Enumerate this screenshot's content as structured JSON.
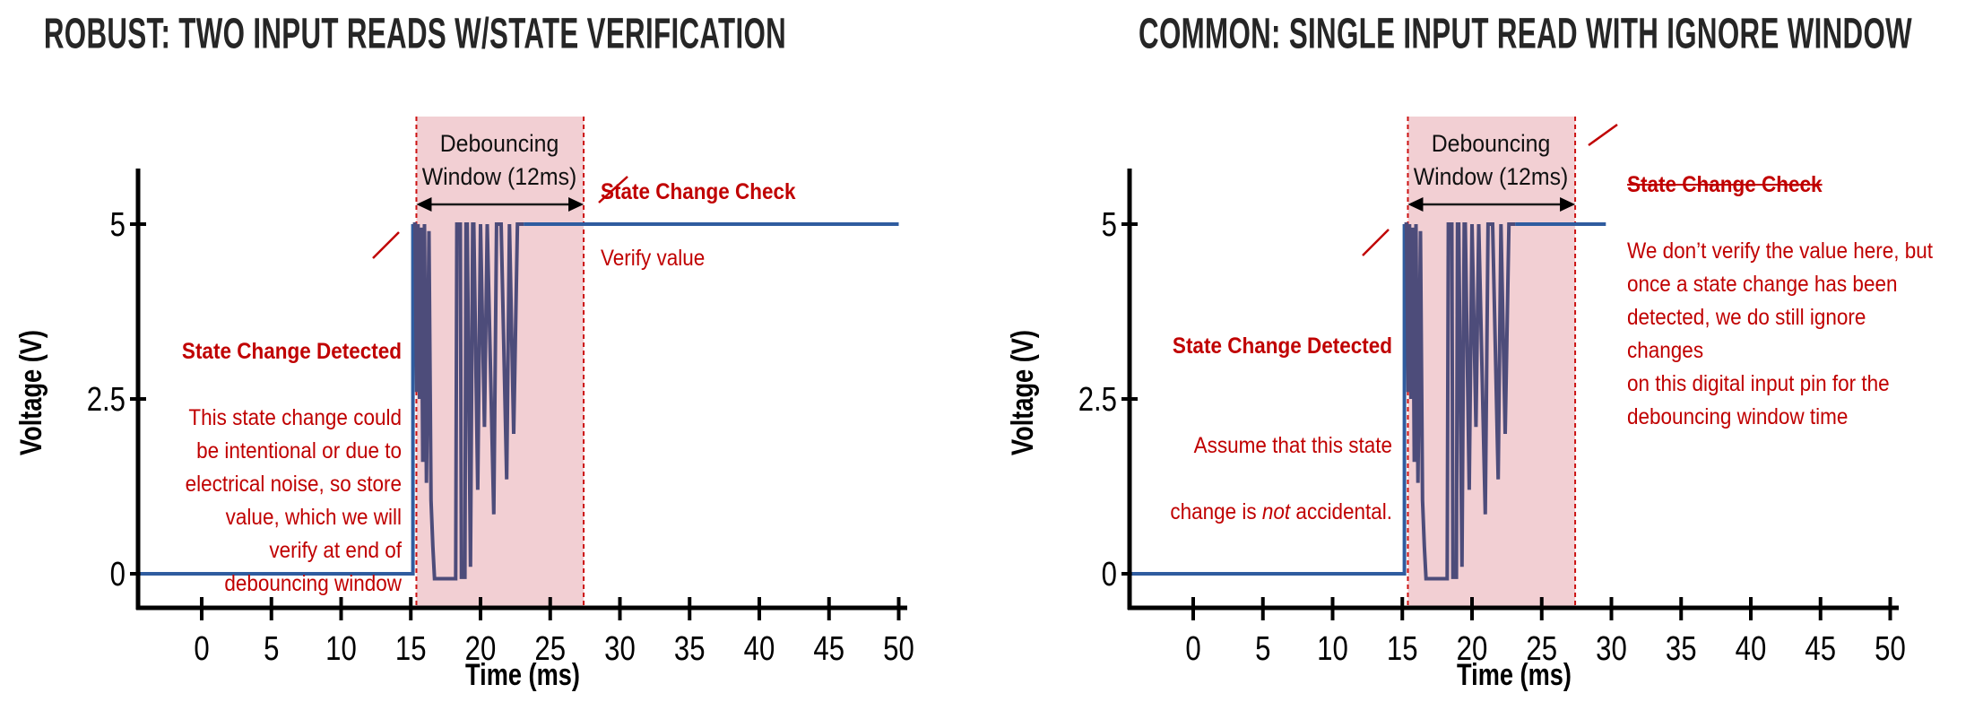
{
  "colors": {
    "title": "#262626",
    "axis": "#000000",
    "signal_blue": "#2F5C9F",
    "bounce_purple": "#4D4C7A",
    "window_fill": "#F2CFD3",
    "window_border": "#CC1111",
    "annotation_red": "#C00000"
  },
  "chart_data": [
    {
      "type": "line",
      "title": "ROBUST: TWO INPUT READS W/STATE VERIFICATION",
      "xlabel": "Time (ms)",
      "ylabel": "Voltage (V)",
      "xlim": [
        -4.4,
        50
      ],
      "ylim": [
        -0.5,
        5.8
      ],
      "xticks": [
        0,
        5,
        10,
        15,
        20,
        25,
        30,
        35,
        40,
        45,
        50
      ],
      "yticks": [
        0,
        2.5,
        5
      ],
      "grid": false,
      "legend": false,
      "debounce_window": {
        "start_ms": 15.4,
        "end_ms": 27.4,
        "label": "Debouncing\nWindow (12ms)"
      },
      "series": [
        {
          "name": "pre-change signal (0V)",
          "color": "#2F5C9F",
          "points": [
            [
              -4.4,
              0
            ],
            [
              15.15,
              0
            ],
            [
              15.15,
              5
            ]
          ]
        },
        {
          "name": "contact bounce noise",
          "color": "#4D4C7A",
          "points": [
            [
              15.15,
              5
            ],
            [
              15.3,
              5
            ],
            [
              15.42,
              2.6
            ],
            [
              15.52,
              5
            ],
            [
              15.63,
              2.5
            ],
            [
              15.74,
              4.95
            ],
            [
              15.86,
              1.6
            ],
            [
              15.98,
              5
            ],
            [
              16.12,
              1.3
            ],
            [
              16.3,
              4.9
            ],
            [
              16.45,
              1.05
            ],
            [
              16.58,
              0.4
            ],
            [
              16.7,
              -0.07
            ],
            [
              18.22,
              -0.07
            ],
            [
              18.3,
              5
            ],
            [
              18.55,
              5
            ],
            [
              18.63,
              -0.05
            ],
            [
              18.88,
              -0.05
            ],
            [
              18.96,
              5
            ],
            [
              19.05,
              5
            ],
            [
              19.28,
              0.1
            ],
            [
              19.44,
              5
            ],
            [
              19.52,
              5
            ],
            [
              19.8,
              1.2
            ],
            [
              20.0,
              5
            ],
            [
              20.28,
              2.1
            ],
            [
              20.48,
              5
            ],
            [
              20.95,
              0.85
            ],
            [
              21.15,
              5
            ],
            [
              21.48,
              5
            ],
            [
              21.88,
              1.35
            ],
            [
              22.08,
              5
            ],
            [
              22.38,
              2.0
            ],
            [
              22.65,
              5
            ],
            [
              23.1,
              5
            ]
          ]
        },
        {
          "name": "post-change signal (5V)",
          "color": "#2F5C9F",
          "points": [
            [
              23.1,
              5
            ],
            [
              50,
              5
            ]
          ]
        }
      ],
      "annotations": {
        "detected_title": "State Change Detected",
        "detected_body": "This state change could\nbe intentional or due to\nelectrical noise, so store\nvalue, which we will\nverify at end of\ndebouncing window",
        "check_title": "State Change Check",
        "check_body": "Verify value"
      }
    },
    {
      "type": "line",
      "title": "COMMON: SINGLE INPUT READ WITH IGNORE WINDOW",
      "xlabel": "Time (ms)",
      "ylabel": "Voltage (V)",
      "xlim": [
        -4.4,
        50
      ],
      "ylim": [
        -0.5,
        5.8
      ],
      "xticks": [
        0,
        5,
        10,
        15,
        20,
        25,
        30,
        35,
        40,
        45,
        50
      ],
      "yticks": [
        0,
        2.5,
        5
      ],
      "grid": false,
      "legend": false,
      "debounce_window": {
        "start_ms": 15.4,
        "end_ms": 27.4,
        "label": "Debouncing\nWindow (12ms)"
      },
      "series": [
        {
          "name": "pre-change signal (0V)",
          "color": "#2F5C9F",
          "points": [
            [
              -4.4,
              0
            ],
            [
              15.15,
              0
            ],
            [
              15.15,
              5
            ]
          ]
        },
        {
          "name": "contact bounce noise",
          "color": "#4D4C7A",
          "points": [
            [
              15.15,
              5
            ],
            [
              15.3,
              5
            ],
            [
              15.42,
              2.6
            ],
            [
              15.52,
              5
            ],
            [
              15.63,
              2.5
            ],
            [
              15.74,
              4.95
            ],
            [
              15.86,
              1.6
            ],
            [
              15.98,
              5
            ],
            [
              16.12,
              1.3
            ],
            [
              16.3,
              4.9
            ],
            [
              16.45,
              1.05
            ],
            [
              16.58,
              0.4
            ],
            [
              16.7,
              -0.07
            ],
            [
              18.22,
              -0.07
            ],
            [
              18.3,
              5
            ],
            [
              18.55,
              5
            ],
            [
              18.63,
              -0.05
            ],
            [
              18.88,
              -0.05
            ],
            [
              18.96,
              5
            ],
            [
              19.05,
              5
            ],
            [
              19.28,
              0.1
            ],
            [
              19.44,
              5
            ],
            [
              19.52,
              5
            ],
            [
              19.8,
              1.2
            ],
            [
              20.0,
              5
            ],
            [
              20.28,
              2.1
            ],
            [
              20.48,
              5
            ],
            [
              20.95,
              0.85
            ],
            [
              21.15,
              5
            ],
            [
              21.48,
              5
            ],
            [
              21.88,
              1.35
            ],
            [
              22.08,
              5
            ],
            [
              22.38,
              2.0
            ],
            [
              22.65,
              5
            ],
            [
              23.1,
              5
            ]
          ]
        },
        {
          "name": "post-change signal (5V)",
          "color": "#2F5C9F",
          "points": [
            [
              23.1,
              5
            ],
            [
              29.6,
              5
            ]
          ]
        }
      ],
      "annotations": {
        "detected_title": "State Change Detected",
        "detected_line1": "Assume that this state",
        "detected_line2_pre": "change is ",
        "detected_line2_italic": "not",
        "detected_line2_post": " accidental.",
        "check_title": "State Change Check",
        "check_body": "We don’t verify the value here, but\nonce a state change has been\ndetected, we do still ignore changes\non this digital input pin for the\ndebouncing window time"
      }
    }
  ]
}
